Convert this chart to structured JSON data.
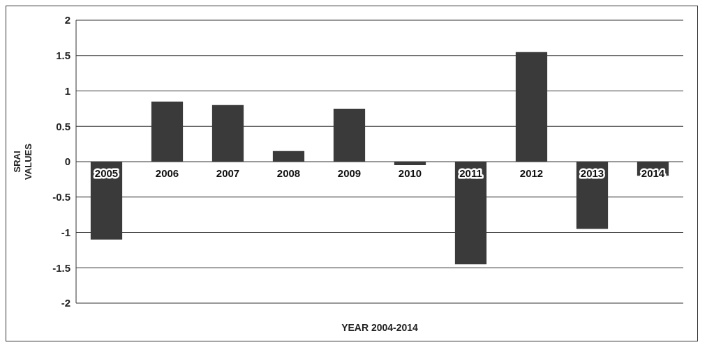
{
  "chart_data": {
    "type": "bar",
    "xlabel": "YEAR 2004-2014",
    "ylabel": "SRAI VALUES",
    "categories": [
      "2005",
      "2006",
      "2007",
      "2008",
      "2009",
      "2010",
      "2011",
      "2012",
      "2013",
      "2014"
    ],
    "values": [
      -1.1,
      0.85,
      0.8,
      0.15,
      0.75,
      -0.05,
      -1.45,
      1.55,
      -0.95,
      -0.2
    ],
    "color": "#3a3a3a",
    "ylim": [
      -2,
      2
    ],
    "yticks": [
      -2,
      -1.5,
      -1,
      -0.5,
      0,
      0.5,
      1,
      1.5,
      2
    ],
    "grid": "y"
  }
}
